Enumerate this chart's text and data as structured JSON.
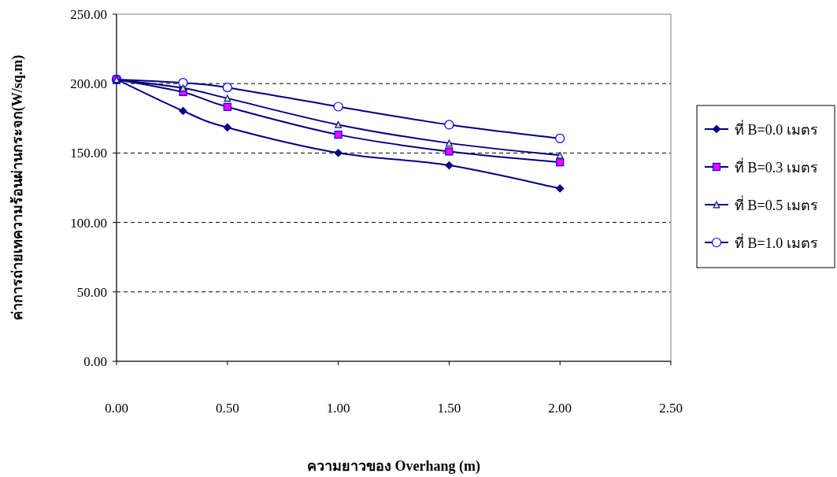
{
  "chart_data": {
    "type": "line",
    "xlabel": "ความยาวของ Overhang (m)",
    "ylabel": "ค่าการถ่ายเทความร้อนผ่านกระจก(W/sq.m)",
    "x": [
      0,
      0.3,
      0.5,
      1.0,
      1.5,
      2.0
    ],
    "series": [
      {
        "name": "ที่ B=0.0 เมตร",
        "color": "#000080",
        "marker": "diamond",
        "colors": [
          "#000080",
          "#000080",
          "#000080",
          "#000080",
          "#000080",
          "#000080"
        ],
        "values": [
          203.0,
          180.3,
          168.4,
          150.1,
          141.1,
          124.5
        ]
      },
      {
        "name": "ที่ B=0.3 เมตร",
        "color": "#000080",
        "marker": "square",
        "colors": [
          "#ff00ff",
          "#ff00ff",
          "#ff00ff",
          "#ff00ff",
          "#ff00ff",
          "#ff00ff"
        ],
        "values": [
          203.0,
          193.9,
          183.2,
          163.2,
          151.1,
          143.3
        ]
      },
      {
        "name": "ที่ B=0.5 เมตร",
        "color": "#000080",
        "marker": "triangle",
        "colors": [
          "#ffff00",
          "#ffff00",
          "#ffff00",
          "#ffff00",
          "#ffff00",
          "#ffff00"
        ],
        "values": [
          203.0,
          196.8,
          189.4,
          170.4,
          157.1,
          148.3
        ]
      },
      {
        "name": "ที่ B=1.0 เมตร",
        "color": "#000080",
        "marker": "circle",
        "colors": [
          "#ffffff",
          "#ffffff",
          "#ffffff",
          "#ffffff",
          "#ffffff",
          "#ffffff"
        ],
        "values": [
          203.0,
          200.6,
          197.2,
          183.4,
          170.4,
          160.5
        ]
      }
    ],
    "xlim": [
      0,
      2.5
    ],
    "xticks": [
      {
        "value": 0,
        "label": "0.00"
      },
      {
        "value": 0.5,
        "label": "0.50"
      },
      {
        "value": 1,
        "label": "1.00"
      },
      {
        "value": 1.5,
        "label": "1.50"
      },
      {
        "value": 2,
        "label": "2.00"
      },
      {
        "value": 2.5,
        "label": "2.50"
      }
    ],
    "ylim": [
      0,
      250
    ],
    "yticks": [
      {
        "value": 0,
        "label": "0.00"
      },
      {
        "value": 50,
        "label": "50.00"
      },
      {
        "value": 100,
        "label": "100.00"
      },
      {
        "value": 150,
        "label": "150.00"
      },
      {
        "value": 200,
        "label": "200.00"
      },
      {
        "value": 250,
        "label": "250.00"
      }
    ],
    "grid": "y",
    "legend": "right",
    "line_style": "solid"
  }
}
